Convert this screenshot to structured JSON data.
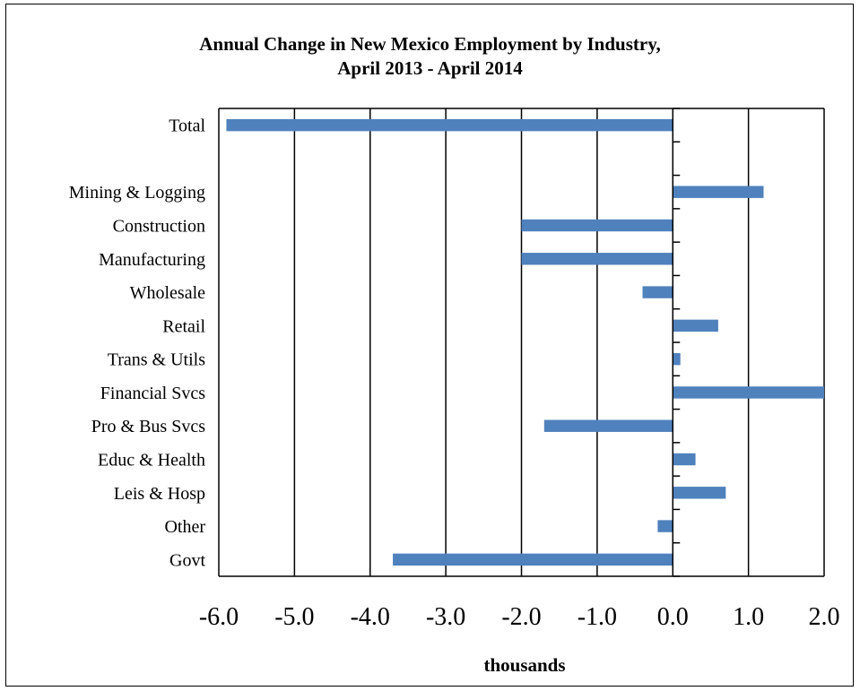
{
  "chart_data": {
    "type": "bar",
    "orientation": "horizontal",
    "title": "Annual Change in New Mexico Employment by Industry,",
    "subtitle": "April 2013 - April 2014",
    "xlabel": "thousands",
    "ylabel": "",
    "xlim": [
      -6.0,
      2.0
    ],
    "x_ticks": [
      "-6.0",
      "-5.0",
      "-4.0",
      "-3.0",
      "-2.0",
      "-1.0",
      "0.0",
      "1.0",
      "2.0"
    ],
    "grid": true,
    "categories": [
      "Total",
      "",
      "Mining & Logging",
      "Construction",
      "Manufacturing",
      "Wholesale",
      "Retail",
      "Trans & Utils",
      "Financial Svcs",
      "Pro & Bus Svcs",
      "Educ & Health",
      "Leis & Hosp",
      "Other",
      "Govt"
    ],
    "values": [
      -5.9,
      null,
      1.2,
      -2.0,
      -2.0,
      -0.4,
      0.6,
      0.1,
      2.0,
      -1.7,
      0.3,
      0.7,
      -0.2,
      -3.7
    ],
    "bar_color": "#4F81BD"
  }
}
